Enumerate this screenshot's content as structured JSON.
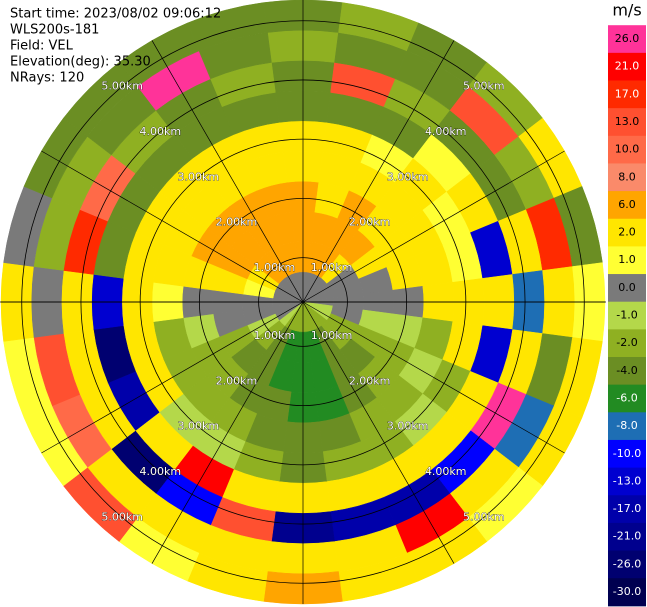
{
  "chart_data": {
    "type": "ppi",
    "info": [
      "Start time: 2023/08/02 09:06:12",
      "WLS200s-181",
      "Field: VEL",
      "Elevation(deg): 35.30",
      "NRays: 120"
    ],
    "rlim": [
      0.25,
      5.35
    ],
    "rings": [
      {
        "value": 1,
        "label": "1.00km"
      },
      {
        "value": 2,
        "label": "2.00km"
      },
      {
        "value": 3,
        "label": "3.00km"
      },
      {
        "value": 4,
        "label": "4.00km"
      },
      {
        "value": 5,
        "label": "5.00km"
      }
    ],
    "values": [
      [
        0,
        6,
        6,
        6,
        2,
        2,
        -4,
        -4,
        -2,
        -4
      ],
      [
        0,
        6,
        6,
        2,
        2,
        2,
        -4,
        13,
        -4,
        -2
      ],
      [
        0,
        6,
        6,
        6,
        2,
        1,
        -4,
        -2,
        -4,
        -4
      ],
      [
        0,
        2,
        6,
        2,
        2,
        2,
        1,
        -4,
        13,
        -2
      ],
      [
        0,
        0,
        2,
        2,
        2,
        1,
        2,
        -4,
        -2,
        2
      ],
      [
        0,
        0,
        0,
        2,
        2,
        1,
        -13,
        2,
        17,
        -4
      ],
      [
        0,
        0,
        0,
        0,
        2,
        2,
        2,
        -8,
        2,
        1
      ],
      [
        -1,
        0,
        -1,
        -1,
        -2,
        2,
        -13,
        2,
        -4,
        2
      ],
      [
        -1,
        -2,
        -2,
        -2,
        -1,
        -2,
        2,
        26,
        -8,
        2
      ],
      [
        -2,
        -2,
        -4,
        -2,
        -2,
        -1,
        2,
        -10,
        2,
        1
      ],
      [
        -2,
        -4,
        -4,
        -4,
        -2,
        -2,
        2,
        -17,
        21,
        2
      ],
      [
        -2,
        -6,
        -6,
        -6,
        -4,
        -2,
        2,
        -17,
        2,
        2
      ],
      [
        -2,
        -6,
        -6,
        -6,
        -4,
        -4,
        2,
        -21,
        2,
        6
      ],
      [
        -2,
        -6,
        -6,
        -4,
        -4,
        -2,
        2,
        13,
        2,
        2
      ],
      [
        -2,
        -4,
        -4,
        -4,
        -2,
        -1,
        21,
        -10,
        2,
        1
      ],
      [
        -1,
        -2,
        -4,
        -2,
        -2,
        -1,
        2,
        -26,
        2,
        13
      ],
      [
        0,
        -1,
        -2,
        -2,
        -2,
        2,
        -17,
        2,
        10,
        1
      ],
      [
        0,
        0,
        0,
        -1,
        -2,
        2,
        -26,
        2,
        13,
        1
      ],
      [
        0,
        0,
        0,
        0,
        1,
        2,
        -13,
        2,
        0,
        2
      ],
      [
        0,
        1,
        2,
        2,
        2,
        2,
        -4,
        17,
        -2,
        0
      ],
      [
        0,
        2,
        6,
        6,
        2,
        2,
        -4,
        10,
        -2,
        -4
      ],
      [
        0,
        6,
        6,
        6,
        2,
        2,
        -4,
        -2,
        -4,
        -4
      ],
      [
        0,
        6,
        6,
        6,
        2,
        2,
        -4,
        -4,
        26,
        -4
      ],
      [
        0,
        6,
        6,
        6,
        2,
        2,
        -4,
        -2,
        -4,
        -4
      ]
    ],
    "colorbar": {
      "label": "m/s",
      "ticks": [
        {
          "value": 26,
          "label": "26.0"
        },
        {
          "value": 21,
          "label": "21.0"
        },
        {
          "value": 17,
          "label": "17.0"
        },
        {
          "value": 13,
          "label": "13.0"
        },
        {
          "value": 10,
          "label": "10.0"
        },
        {
          "value": 8,
          "label": "8.0"
        },
        {
          "value": 6,
          "label": "6.0"
        },
        {
          "value": 2,
          "label": "2.0"
        },
        {
          "value": 1,
          "label": "1.0"
        },
        {
          "value": 0,
          "label": "0.0"
        },
        {
          "value": -1,
          "label": "-1.0"
        },
        {
          "value": -2,
          "label": "-2.0"
        },
        {
          "value": -4,
          "label": "-4.0"
        },
        {
          "value": -6,
          "label": "-6.0"
        },
        {
          "value": -8,
          "label": "-8.0"
        },
        {
          "value": -10,
          "label": "-10.0"
        },
        {
          "value": -13,
          "label": "-13.0"
        },
        {
          "value": -17,
          "label": "-17.0"
        },
        {
          "value": -21,
          "label": "-21.0"
        },
        {
          "value": -26,
          "label": "-26.0"
        },
        {
          "value": -30,
          "label": "-30.0"
        }
      ],
      "colors": [
        "#ff3399",
        "#ff0000",
        "#ff2a00",
        "#ff5030",
        "#ff6a48",
        "#fa8a6a",
        "#ffa500",
        "#ffe600",
        "#ffff33",
        "#7a7a7a",
        "#b4d84a",
        "#8fb022",
        "#6b8e23",
        "#228b22",
        "#1e6eb4",
        "#0000ff",
        "#0000d0",
        "#0000aa",
        "#00008e",
        "#000070",
        "#000050"
      ]
    }
  }
}
